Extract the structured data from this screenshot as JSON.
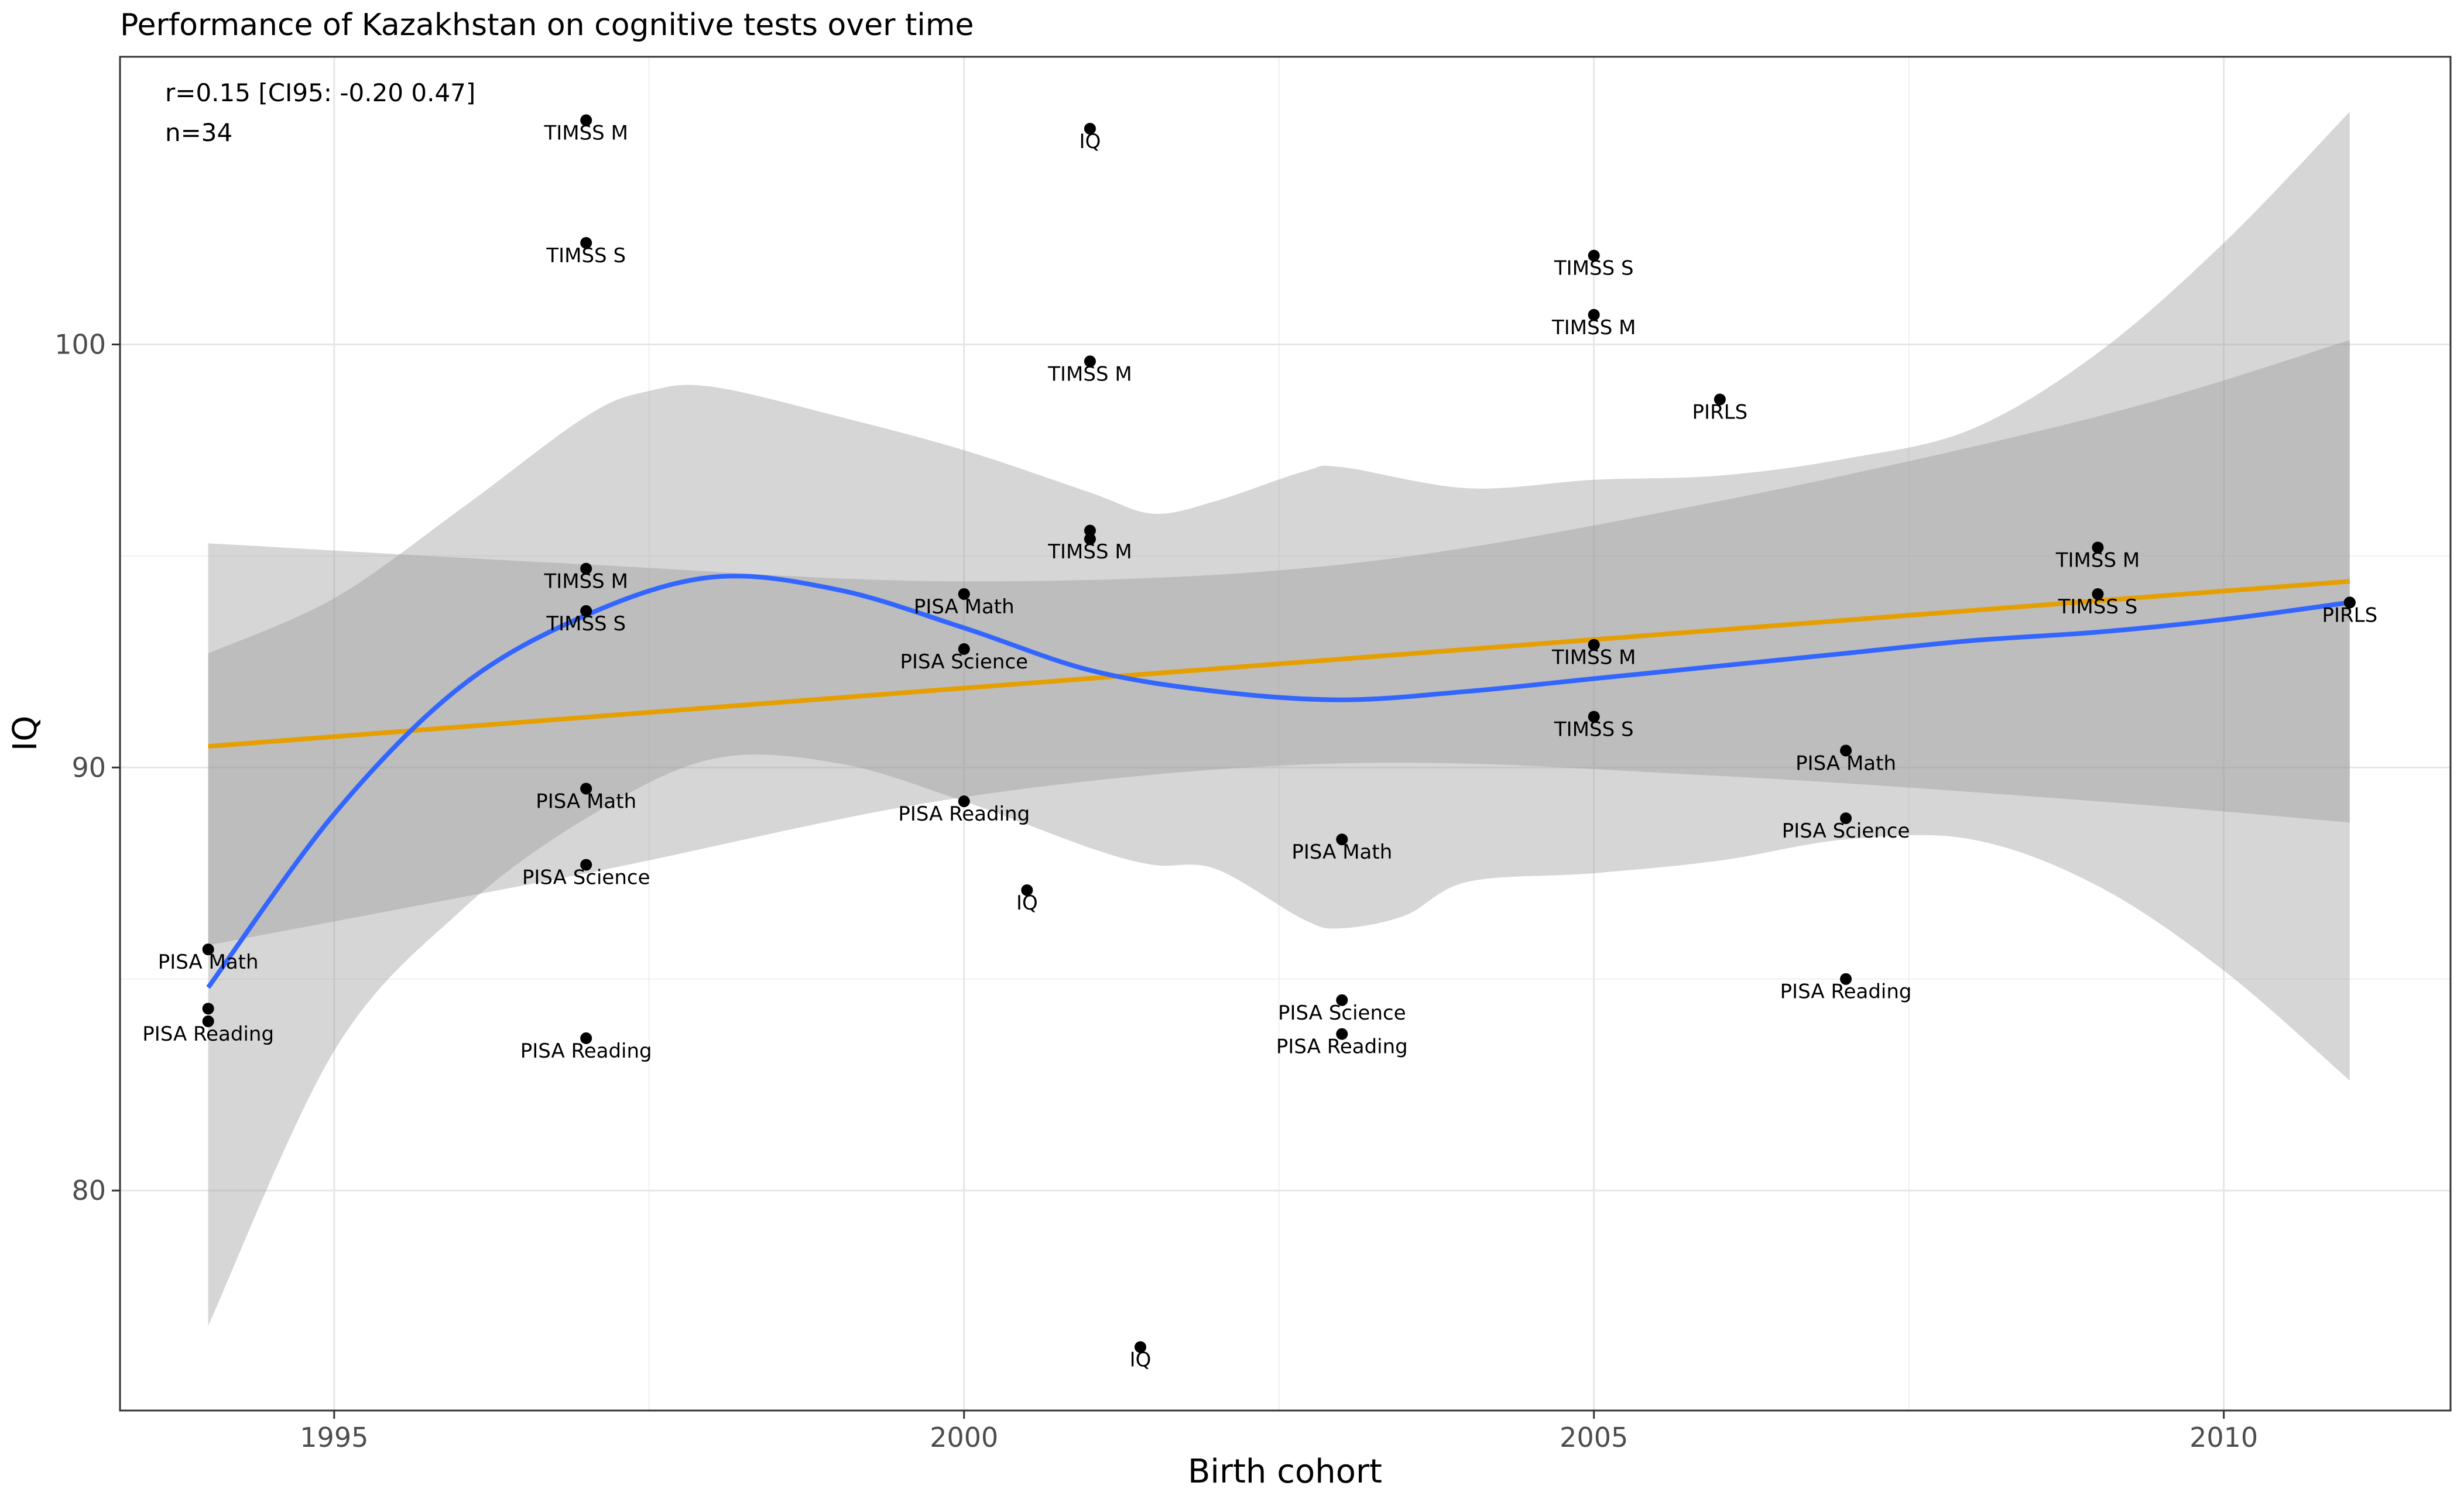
{
  "chart_data": {
    "type": "scatter",
    "title": "Performance of Kazakhstan on cognitive tests over time",
    "xlabel": "Birth cohort",
    "ylabel": "IQ",
    "xlim": [
      1993.3,
      2011.8
    ],
    "ylim": [
      74.8,
      106.8
    ],
    "x_ticks": [
      1995,
      2000,
      2005,
      2010
    ],
    "x_tick_labels": [
      "1995",
      "2000",
      "2005",
      "2010"
    ],
    "y_ticks": [
      80,
      90,
      100
    ],
    "y_tick_labels": [
      "80",
      "90",
      "100"
    ],
    "grid": true,
    "annotation": {
      "line1": "r=0.15 [CI95: -0.20 0.47]",
      "line2": "n=34"
    },
    "points": [
      {
        "x": 1994,
        "y": 85.7,
        "label": "PISA Math"
      },
      {
        "x": 1994,
        "y": 84.3,
        "label": ""
      },
      {
        "x": 1994,
        "y": 84.0,
        "label": "PISA Reading"
      },
      {
        "x": 1997,
        "y": 105.3,
        "label": "TIMSS M"
      },
      {
        "x": 1997,
        "y": 102.4,
        "label": "TIMSS S"
      },
      {
        "x": 1997,
        "y": 94.7,
        "label": "TIMSS M"
      },
      {
        "x": 1997,
        "y": 93.7,
        "label": "TIMSS S"
      },
      {
        "x": 1997,
        "y": 89.5,
        "label": "PISA Math"
      },
      {
        "x": 1997,
        "y": 87.7,
        "label": "PISA Science"
      },
      {
        "x": 1997,
        "y": 83.6,
        "label": "PISA Reading"
      },
      {
        "x": 2000,
        "y": 94.1,
        "label": "PISA Math"
      },
      {
        "x": 2000,
        "y": 92.8,
        "label": "PISA Science"
      },
      {
        "x": 2000,
        "y": 89.2,
        "label": "PISA Reading"
      },
      {
        "x": 2000.5,
        "y": 87.1,
        "label": "IQ"
      },
      {
        "x": 2001,
        "y": 105.1,
        "label": "IQ"
      },
      {
        "x": 2001,
        "y": 99.6,
        "label": "TIMSS M"
      },
      {
        "x": 2001,
        "y": 95.6,
        "label": ""
      },
      {
        "x": 2001,
        "y": 95.4,
        "label": "TIMSS M"
      },
      {
        "x": 2001.4,
        "y": 76.3,
        "label": "IQ"
      },
      {
        "x": 2003,
        "y": 88.3,
        "label": "PISA Math"
      },
      {
        "x": 2003,
        "y": 84.5,
        "label": "PISA Science"
      },
      {
        "x": 2003,
        "y": 83.7,
        "label": "PISA Reading"
      },
      {
        "x": 2005,
        "y": 102.1,
        "label": "TIMSS S"
      },
      {
        "x": 2005,
        "y": 100.7,
        "label": "TIMSS M"
      },
      {
        "x": 2005,
        "y": 92.9,
        "label": "TIMSS M"
      },
      {
        "x": 2005,
        "y": 91.2,
        "label": "TIMSS S"
      },
      {
        "x": 2006,
        "y": 98.7,
        "label": "PIRLS"
      },
      {
        "x": 2007,
        "y": 90.4,
        "label": "PISA Math"
      },
      {
        "x": 2007,
        "y": 88.8,
        "label": "PISA Science"
      },
      {
        "x": 2007,
        "y": 85.0,
        "label": "PISA Reading"
      },
      {
        "x": 2009,
        "y": 95.2,
        "label": "TIMSS M"
      },
      {
        "x": 2009,
        "y": 94.1,
        "label": "TIMSS S"
      },
      {
        "x": 2011,
        "y": 93.9,
        "label": "PIRLS"
      },
      {
        "x": 2011,
        "y": 93.9,
        "label": ""
      }
    ],
    "linear_fit": {
      "color": "#E69F00",
      "x": [
        1994,
        2011
      ],
      "y": [
        90.5,
        94.4
      ],
      "ci_upper": [
        [
          1994,
          95.3
        ],
        [
          1997,
          94.8
        ],
        [
          2000,
          94.4
        ],
        [
          2003,
          94.8
        ],
        [
          2006,
          96.3
        ],
        [
          2009,
          98.3
        ],
        [
          2011,
          100.1
        ]
      ],
      "ci_lower": [
        [
          1994,
          85.8
        ],
        [
          1997,
          87.5
        ],
        [
          2000,
          89.3
        ],
        [
          2003,
          90.1
        ],
        [
          2006,
          89.8
        ],
        [
          2009,
          89.2
        ],
        [
          2011,
          88.7
        ]
      ]
    },
    "loess_fit": {
      "color": "#3366FF",
      "curve": [
        [
          1994,
          84.8
        ],
        [
          1995,
          88.9
        ],
        [
          1996,
          91.9
        ],
        [
          1997,
          93.6
        ],
        [
          1998,
          94.5
        ],
        [
          1999,
          94.2
        ],
        [
          2000,
          93.3
        ],
        [
          2001,
          92.3
        ],
        [
          2002,
          91.8
        ],
        [
          2003,
          91.6
        ],
        [
          2004,
          91.8
        ],
        [
          2005,
          92.1
        ],
        [
          2006,
          92.4
        ],
        [
          2007,
          92.7
        ],
        [
          2008,
          93.0
        ],
        [
          2009,
          93.2
        ],
        [
          2010,
          93.5
        ],
        [
          2011,
          93.9
        ]
      ],
      "ci_upper": [
        [
          1994,
          92.7
        ],
        [
          1995,
          94.0
        ],
        [
          1996,
          96.1
        ],
        [
          1997,
          98.3
        ],
        [
          1997.5,
          98.9
        ],
        [
          1998,
          99.0
        ],
        [
          1999,
          98.3
        ],
        [
          2000,
          97.5
        ],
        [
          2001,
          96.5
        ],
        [
          2001.5,
          96.0
        ],
        [
          2002,
          96.3
        ],
        [
          2002.7,
          97.0
        ],
        [
          2003,
          97.1
        ],
        [
          2004,
          96.6
        ],
        [
          2005,
          96.8
        ],
        [
          2006,
          96.9
        ],
        [
          2007,
          97.3
        ],
        [
          2008,
          98.0
        ],
        [
          2009,
          99.8
        ],
        [
          2010,
          102.4
        ],
        [
          2011,
          105.5
        ]
      ],
      "ci_lower": [
        [
          1994,
          76.8
        ],
        [
          1995,
          83.3
        ],
        [
          1996,
          86.6
        ],
        [
          1997,
          88.8
        ],
        [
          1998,
          90.2
        ],
        [
          1999,
          90.1
        ],
        [
          2000,
          89.2
        ],
        [
          2001,
          88.1
        ],
        [
          2001.5,
          87.7
        ],
        [
          2002,
          87.6
        ],
        [
          2002.7,
          86.4
        ],
        [
          2003,
          86.2
        ],
        [
          2003.5,
          86.5
        ],
        [
          2004,
          87.3
        ],
        [
          2005,
          87.5
        ],
        [
          2006,
          87.8
        ],
        [
          2007,
          88.3
        ],
        [
          2008,
          88.3
        ],
        [
          2009,
          87.2
        ],
        [
          2010,
          85.2
        ],
        [
          2011,
          82.6
        ]
      ]
    },
    "band_color": "#999999"
  }
}
